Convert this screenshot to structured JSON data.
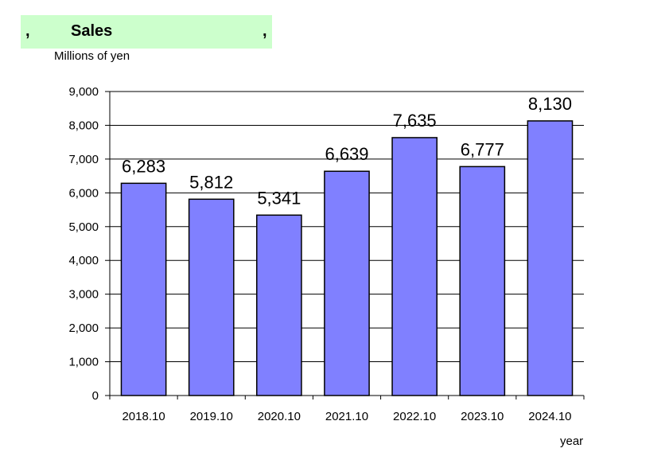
{
  "header": {
    "comma_left": ",",
    "title": "Sales",
    "comma_right": ",",
    "unit_label": "Millions of yen"
  },
  "colors": {
    "bar": "#8080ff",
    "title_bg": "#ccffcc"
  },
  "chart_data": {
    "type": "bar",
    "title": "Sales",
    "ylabel": "Millions of yen",
    "xlabel": "year",
    "categories": [
      "2018.10",
      "2019.10",
      "2020.10",
      "2021.10",
      "2022.10",
      "2023.10",
      "2024.10"
    ],
    "values": [
      6283,
      5812,
      5341,
      6639,
      7635,
      6777,
      8130
    ],
    "value_labels": [
      "6,283",
      "5,812",
      "5,341",
      "6,639",
      "7,635",
      "6,777",
      "8,130"
    ],
    "ylim": [
      0,
      9000
    ],
    "yticks": [
      0,
      1000,
      2000,
      3000,
      4000,
      5000,
      6000,
      7000,
      8000,
      9000
    ],
    "ytick_labels": [
      "0",
      "1,000",
      "2,000",
      "3,000",
      "4,000",
      "5,000",
      "6,000",
      "7,000",
      "8,000",
      "9,000"
    ],
    "grid": true
  }
}
